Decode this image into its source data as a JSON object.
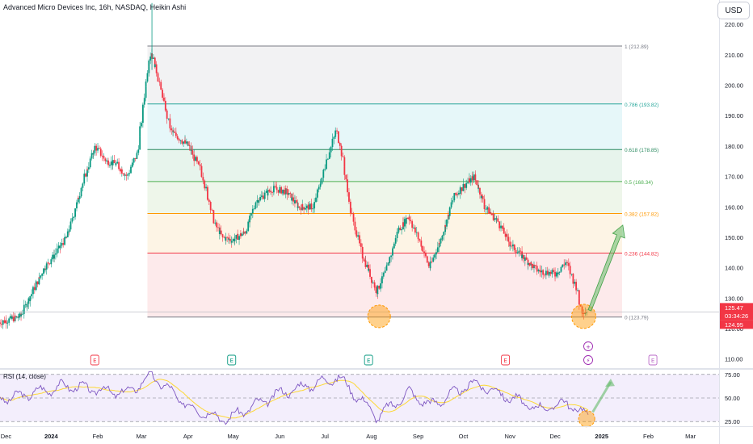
{
  "header": {
    "title": "Advanced Micro Devices Inc, 16h, NASDAQ, Heikin Ashi",
    "currency_button": "USD"
  },
  "rsi_panel": {
    "title": "RSI (14, close)",
    "levels": [
      75,
      50,
      25
    ],
    "level_labels": [
      "75.00",
      "50.00",
      "25.00"
    ]
  },
  "price_axis": {
    "ticks": [
      220,
      210,
      200,
      190,
      180,
      170,
      160,
      150,
      140,
      130,
      120,
      110
    ],
    "tick_labels": [
      "220.00",
      "210.00",
      "200.00",
      "190.00",
      "180.00",
      "170.00",
      "160.00",
      "150.00",
      "140.00",
      "130.00",
      "120.00",
      "110.00"
    ],
    "current_price_label": "125.47",
    "countdown_label": "03:34:26",
    "low_label": "124.95"
  },
  "time_axis": {
    "labels": [
      "Dec",
      "2024",
      "Feb",
      "Mar",
      "Apr",
      "May",
      "Jun",
      "Jul",
      "Aug",
      "Sep",
      "Oct",
      "Nov",
      "Dec",
      "2025",
      "Feb",
      "Mar"
    ]
  },
  "fibonacci": {
    "levels": [
      {
        "ratio": 1,
        "price": 212.89,
        "label": "1 (212.89)",
        "color": "#787b86",
        "fill": "#f2f2f3"
      },
      {
        "ratio": 0.786,
        "price": 193.82,
        "label": "0.786 (193.82)",
        "color": "#26a69a",
        "fill": "#e6f7f9"
      },
      {
        "ratio": 0.618,
        "price": 178.85,
        "label": "0.618 (178.85)",
        "color": "#2a8a60",
        "fill": "#e7f4ec"
      },
      {
        "ratio": 0.5,
        "price": 168.34,
        "label": "0.5 (168.34)",
        "color": "#4caf50",
        "fill": "#eef6ea"
      },
      {
        "ratio": 0.382,
        "price": 157.82,
        "label": "0.382 (157.82)",
        "color": "#ff9800",
        "fill": "#fdf4e5"
      },
      {
        "ratio": 0.236,
        "price": 144.82,
        "label": "0.236 (144.82)",
        "color": "#f23645",
        "fill": "#fdeaeb"
      },
      {
        "ratio": 0,
        "price": 123.79,
        "label": "0 (123.79)",
        "color": "#787b86",
        "fill": "#fdeaeb"
      }
    ]
  },
  "events": [
    {
      "type": "earnings",
      "letter": "E",
      "color": "#f23645"
    },
    {
      "type": "earnings",
      "letter": "E",
      "color": "#089981"
    },
    {
      "type": "earnings",
      "letter": "E",
      "color": "#089981"
    },
    {
      "type": "earnings",
      "letter": "E",
      "color": "#f23645"
    },
    {
      "type": "earnings",
      "letter": "E",
      "color": "#ba68c8"
    },
    {
      "type": "dividend-icon",
      "letter": "+",
      "color": "#9c27b0"
    },
    {
      "type": "split-icon",
      "letter": "⚡",
      "color": "#9c27b0"
    }
  ],
  "colors": {
    "up": "#089981",
    "down": "#f23645",
    "rsi_line": "#7e57c2",
    "rsi_ma": "#fdd835",
    "rsi_band": "#f3eefc",
    "highlight_circle": "#ff9800",
    "arrow": "#66bb6a"
  },
  "chart_data": [
    {
      "type": "candlestick",
      "style": "Heikin Ashi",
      "title": "Advanced Micro Devices Inc, 16h, NASDAQ, Heikin Ashi",
      "ylim": [
        107,
        228
      ],
      "x_range": [
        "2023-11-28",
        "2025-03-20"
      ],
      "key_points": [
        {
          "date": "2023-11-28",
          "price": 122
        },
        {
          "date": "2023-12-12",
          "price": 124
        },
        {
          "date": "2023-12-28",
          "price": 140
        },
        {
          "date": "2024-01-02",
          "price": 143
        },
        {
          "date": "2024-01-12",
          "price": 150
        },
        {
          "date": "2024-01-24",
          "price": 170
        },
        {
          "date": "2024-01-31",
          "price": 180
        },
        {
          "date": "2024-02-07",
          "price": 175
        },
        {
          "date": "2024-02-14",
          "price": 174
        },
        {
          "date": "2024-02-21",
          "price": 170
        },
        {
          "date": "2024-02-28",
          "price": 178
        },
        {
          "date": "2024-03-06",
          "price": 207
        },
        {
          "date": "2024-03-08",
          "price": 211
        },
        {
          "date": "2024-03-14",
          "price": 200
        },
        {
          "date": "2024-03-21",
          "price": 185
        },
        {
          "date": "2024-04-02",
          "price": 180
        },
        {
          "date": "2024-04-10",
          "price": 172
        },
        {
          "date": "2024-04-19",
          "price": 155
        },
        {
          "date": "2024-04-24",
          "price": 150
        },
        {
          "date": "2024-05-01",
          "price": 149
        },
        {
          "date": "2024-05-10",
          "price": 152
        },
        {
          "date": "2024-05-17",
          "price": 162
        },
        {
          "date": "2024-05-28",
          "price": 166
        },
        {
          "date": "2024-06-06",
          "price": 165
        },
        {
          "date": "2024-06-14",
          "price": 160
        },
        {
          "date": "2024-06-24",
          "price": 160
        },
        {
          "date": "2024-07-03",
          "price": 176
        },
        {
          "date": "2024-07-09",
          "price": 185
        },
        {
          "date": "2024-07-12",
          "price": 180
        },
        {
          "date": "2024-07-19",
          "price": 158
        },
        {
          "date": "2024-07-26",
          "price": 145
        },
        {
          "date": "2024-08-05",
          "price": 132
        },
        {
          "date": "2024-08-12",
          "price": 140
        },
        {
          "date": "2024-08-19",
          "price": 152
        },
        {
          "date": "2024-08-26",
          "price": 157
        },
        {
          "date": "2024-09-03",
          "price": 148
        },
        {
          "date": "2024-09-09",
          "price": 140
        },
        {
          "date": "2024-09-17",
          "price": 150
        },
        {
          "date": "2024-09-25",
          "price": 163
        },
        {
          "date": "2024-10-02",
          "price": 167
        },
        {
          "date": "2024-10-09",
          "price": 170
        },
        {
          "date": "2024-10-16",
          "price": 160
        },
        {
          "date": "2024-10-25",
          "price": 155
        },
        {
          "date": "2024-11-01",
          "price": 148
        },
        {
          "date": "2024-11-11",
          "price": 143
        },
        {
          "date": "2024-11-20",
          "price": 139
        },
        {
          "date": "2024-12-02",
          "price": 138
        },
        {
          "date": "2024-12-09",
          "price": 142
        },
        {
          "date": "2024-12-16",
          "price": 133
        },
        {
          "date": "2024-12-19",
          "price": 126
        },
        {
          "date": "2024-12-23",
          "price": 125.47
        }
      ],
      "annotations": [
        "projection arrow from ~125 toward ~154",
        "highlight circle at Aug low",
        "highlight circle at Dec low"
      ]
    },
    {
      "type": "line",
      "title": "RSI (14, close)",
      "ylim": [
        20,
        80
      ],
      "key_points": [
        {
          "date": "2023-12-05",
          "value": 50
        },
        {
          "date": "2024-01-10",
          "value": 63
        },
        {
          "date": "2024-02-20",
          "value": 55
        },
        {
          "date": "2024-03-08",
          "value": 74
        },
        {
          "date": "2024-04-02",
          "value": 40
        },
        {
          "date": "2024-04-26",
          "value": 27
        },
        {
          "date": "2024-06-01",
          "value": 55
        },
        {
          "date": "2024-07-10",
          "value": 72
        },
        {
          "date": "2024-08-05",
          "value": 30
        },
        {
          "date": "2024-08-26",
          "value": 56
        },
        {
          "date": "2024-09-09",
          "value": 42
        },
        {
          "date": "2024-10-08",
          "value": 66
        },
        {
          "date": "2024-11-20",
          "value": 38
        },
        {
          "date": "2024-12-09",
          "value": 45
        },
        {
          "date": "2024-12-23",
          "value": 30
        }
      ]
    }
  ]
}
